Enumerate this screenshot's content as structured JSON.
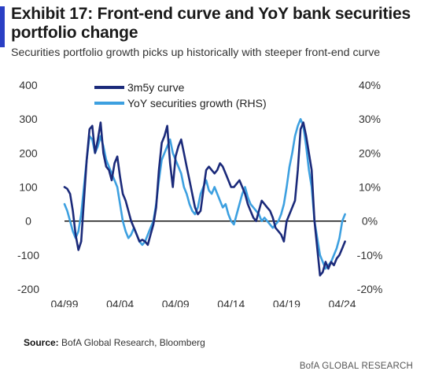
{
  "header": {
    "title": "Exhibit 17: Front-end curve and YoY bank securities portfolio change",
    "subtitle": "Securities portfolio growth picks up historically with steeper front-end curve"
  },
  "footer": {
    "source_label": "Source:",
    "source_text": "BofA Global Research, Bloomberg",
    "brand": "BofA GLOBAL RESEARCH"
  },
  "chart_data": {
    "type": "line",
    "title": "Exhibit 17: Front-end curve and YoY bank securities portfolio change",
    "subtitle": "Securities portfolio growth picks up historically with steeper front-end curve",
    "x_ticks": [
      "04/99",
      "04/04",
      "04/09",
      "04/14",
      "04/19",
      "04/24"
    ],
    "x_range": [
      1999.25,
      2024.6
    ],
    "y_left": {
      "range": [
        -200,
        400
      ],
      "ticks": [
        400,
        300,
        200,
        100,
        0,
        -100,
        -200
      ],
      "tick_labels": [
        "400",
        "300",
        "200",
        "100",
        "0",
        "-100",
        "-200"
      ]
    },
    "y_right": {
      "range": [
        -20,
        40
      ],
      "ticks": [
        40,
        30,
        20,
        10,
        0,
        -10,
        -20
      ],
      "tick_labels": [
        "40%",
        "30%",
        "20%",
        "10%",
        "0%",
        "-10%",
        "-20%"
      ]
    },
    "zero_line": true,
    "legend_position": "top-left",
    "colors": {
      "curve": "#1b2a7a",
      "growth": "#3da0e0"
    },
    "series": [
      {
        "name": "3m5y curve",
        "axis": "left",
        "color": "#1b2a7a",
        "x": [
          1999.25,
          1999.5,
          1999.75,
          2000.0,
          2000.25,
          2000.5,
          2000.75,
          2001.0,
          2001.25,
          2001.5,
          2001.75,
          2002.0,
          2002.25,
          2002.5,
          2002.75,
          2003.0,
          2003.25,
          2003.5,
          2003.75,
          2004.0,
          2004.25,
          2004.5,
          2004.75,
          2005.0,
          2005.25,
          2005.5,
          2005.75,
          2006.0,
          2006.25,
          2006.5,
          2006.75,
          2007.0,
          2007.25,
          2007.5,
          2007.75,
          2008.0,
          2008.25,
          2008.5,
          2008.75,
          2009.0,
          2009.25,
          2009.5,
          2009.75,
          2010.0,
          2010.25,
          2010.5,
          2010.75,
          2011.0,
          2011.25,
          2011.5,
          2011.75,
          2012.0,
          2012.25,
          2012.5,
          2012.75,
          2013.0,
          2013.25,
          2013.5,
          2013.75,
          2014.0,
          2014.25,
          2014.5,
          2014.75,
          2015.0,
          2015.25,
          2015.5,
          2015.75,
          2016.0,
          2016.25,
          2016.5,
          2016.75,
          2017.0,
          2017.25,
          2017.5,
          2017.75,
          2018.0,
          2018.25,
          2018.5,
          2018.75,
          2019.0,
          2019.25,
          2019.5,
          2019.75,
          2020.0,
          2020.25,
          2020.5,
          2020.75,
          2021.0,
          2021.25,
          2021.5,
          2021.75,
          2022.0,
          2022.25,
          2022.5,
          2022.75,
          2023.0,
          2023.25,
          2023.5,
          2023.75,
          2024.0,
          2024.25,
          2024.5
        ],
        "values": [
          100,
          95,
          80,
          30,
          -40,
          -85,
          -60,
          60,
          180,
          270,
          280,
          200,
          240,
          290,
          200,
          160,
          150,
          120,
          170,
          190,
          130,
          80,
          60,
          30,
          0,
          -20,
          -40,
          -60,
          -55,
          -60,
          -70,
          -40,
          -10,
          40,
          150,
          230,
          250,
          280,
          170,
          100,
          190,
          220,
          240,
          200,
          160,
          120,
          80,
          40,
          20,
          30,
          90,
          150,
          160,
          150,
          140,
          150,
          170,
          160,
          140,
          120,
          100,
          100,
          110,
          120,
          100,
          80,
          50,
          30,
          10,
          0,
          30,
          60,
          50,
          40,
          30,
          10,
          -20,
          -30,
          -40,
          -60,
          0,
          20,
          40,
          60,
          150,
          270,
          290,
          250,
          200,
          150,
          0,
          -80,
          -160,
          -150,
          -120,
          -140,
          -120,
          -130,
          -110,
          -100,
          -80,
          -60
        ]
      },
      {
        "name": "YoY securities growth (RHS)",
        "axis": "right",
        "color": "#3da0e0",
        "x": [
          1999.25,
          1999.5,
          1999.75,
          2000.0,
          2000.25,
          2000.5,
          2000.75,
          2001.0,
          2001.25,
          2001.5,
          2001.75,
          2002.0,
          2002.25,
          2002.5,
          2002.75,
          2003.0,
          2003.25,
          2003.5,
          2003.75,
          2004.0,
          2004.25,
          2004.5,
          2004.75,
          2005.0,
          2005.25,
          2005.5,
          2005.75,
          2006.0,
          2006.25,
          2006.5,
          2006.75,
          2007.0,
          2007.25,
          2007.5,
          2007.75,
          2008.0,
          2008.25,
          2008.5,
          2008.75,
          2009.0,
          2009.25,
          2009.5,
          2009.75,
          2010.0,
          2010.25,
          2010.5,
          2010.75,
          2011.0,
          2011.25,
          2011.5,
          2011.75,
          2012.0,
          2012.25,
          2012.5,
          2012.75,
          2013.0,
          2013.25,
          2013.5,
          2013.75,
          2014.0,
          2014.25,
          2014.5,
          2014.75,
          2015.0,
          2015.25,
          2015.5,
          2015.75,
          2016.0,
          2016.25,
          2016.5,
          2016.75,
          2017.0,
          2017.25,
          2017.5,
          2017.75,
          2018.0,
          2018.25,
          2018.5,
          2018.75,
          2019.0,
          2019.25,
          2019.5,
          2019.75,
          2020.0,
          2020.25,
          2020.5,
          2020.75,
          2021.0,
          2021.25,
          2021.5,
          2021.75,
          2022.0,
          2022.25,
          2022.5,
          2022.75,
          2023.0,
          2023.25,
          2023.5,
          2023.75,
          2024.0,
          2024.25,
          2024.5
        ],
        "values": [
          5,
          3,
          0,
          -3,
          -5,
          -3,
          2,
          10,
          18,
          25,
          24,
          20,
          22,
          25,
          22,
          18,
          16,
          14,
          12,
          10,
          5,
          0,
          -3,
          -5,
          -4,
          -2,
          -4,
          -6,
          -7,
          -6,
          -4,
          -2,
          0,
          5,
          12,
          18,
          20,
          22,
          24,
          20,
          18,
          16,
          14,
          10,
          8,
          5,
          3,
          2,
          4,
          8,
          10,
          12,
          9,
          8,
          10,
          8,
          6,
          4,
          5,
          2,
          0,
          -1,
          2,
          5,
          8,
          10,
          7,
          5,
          4,
          3,
          2,
          0,
          1,
          0,
          -1,
          -2,
          -1,
          0,
          2,
          5,
          10,
          16,
          20,
          25,
          28,
          30,
          28,
          22,
          15,
          10,
          0,
          -5,
          -10,
          -12,
          -14,
          -13,
          -12,
          -10,
          -8,
          -5,
          0,
          2
        ]
      }
    ]
  }
}
